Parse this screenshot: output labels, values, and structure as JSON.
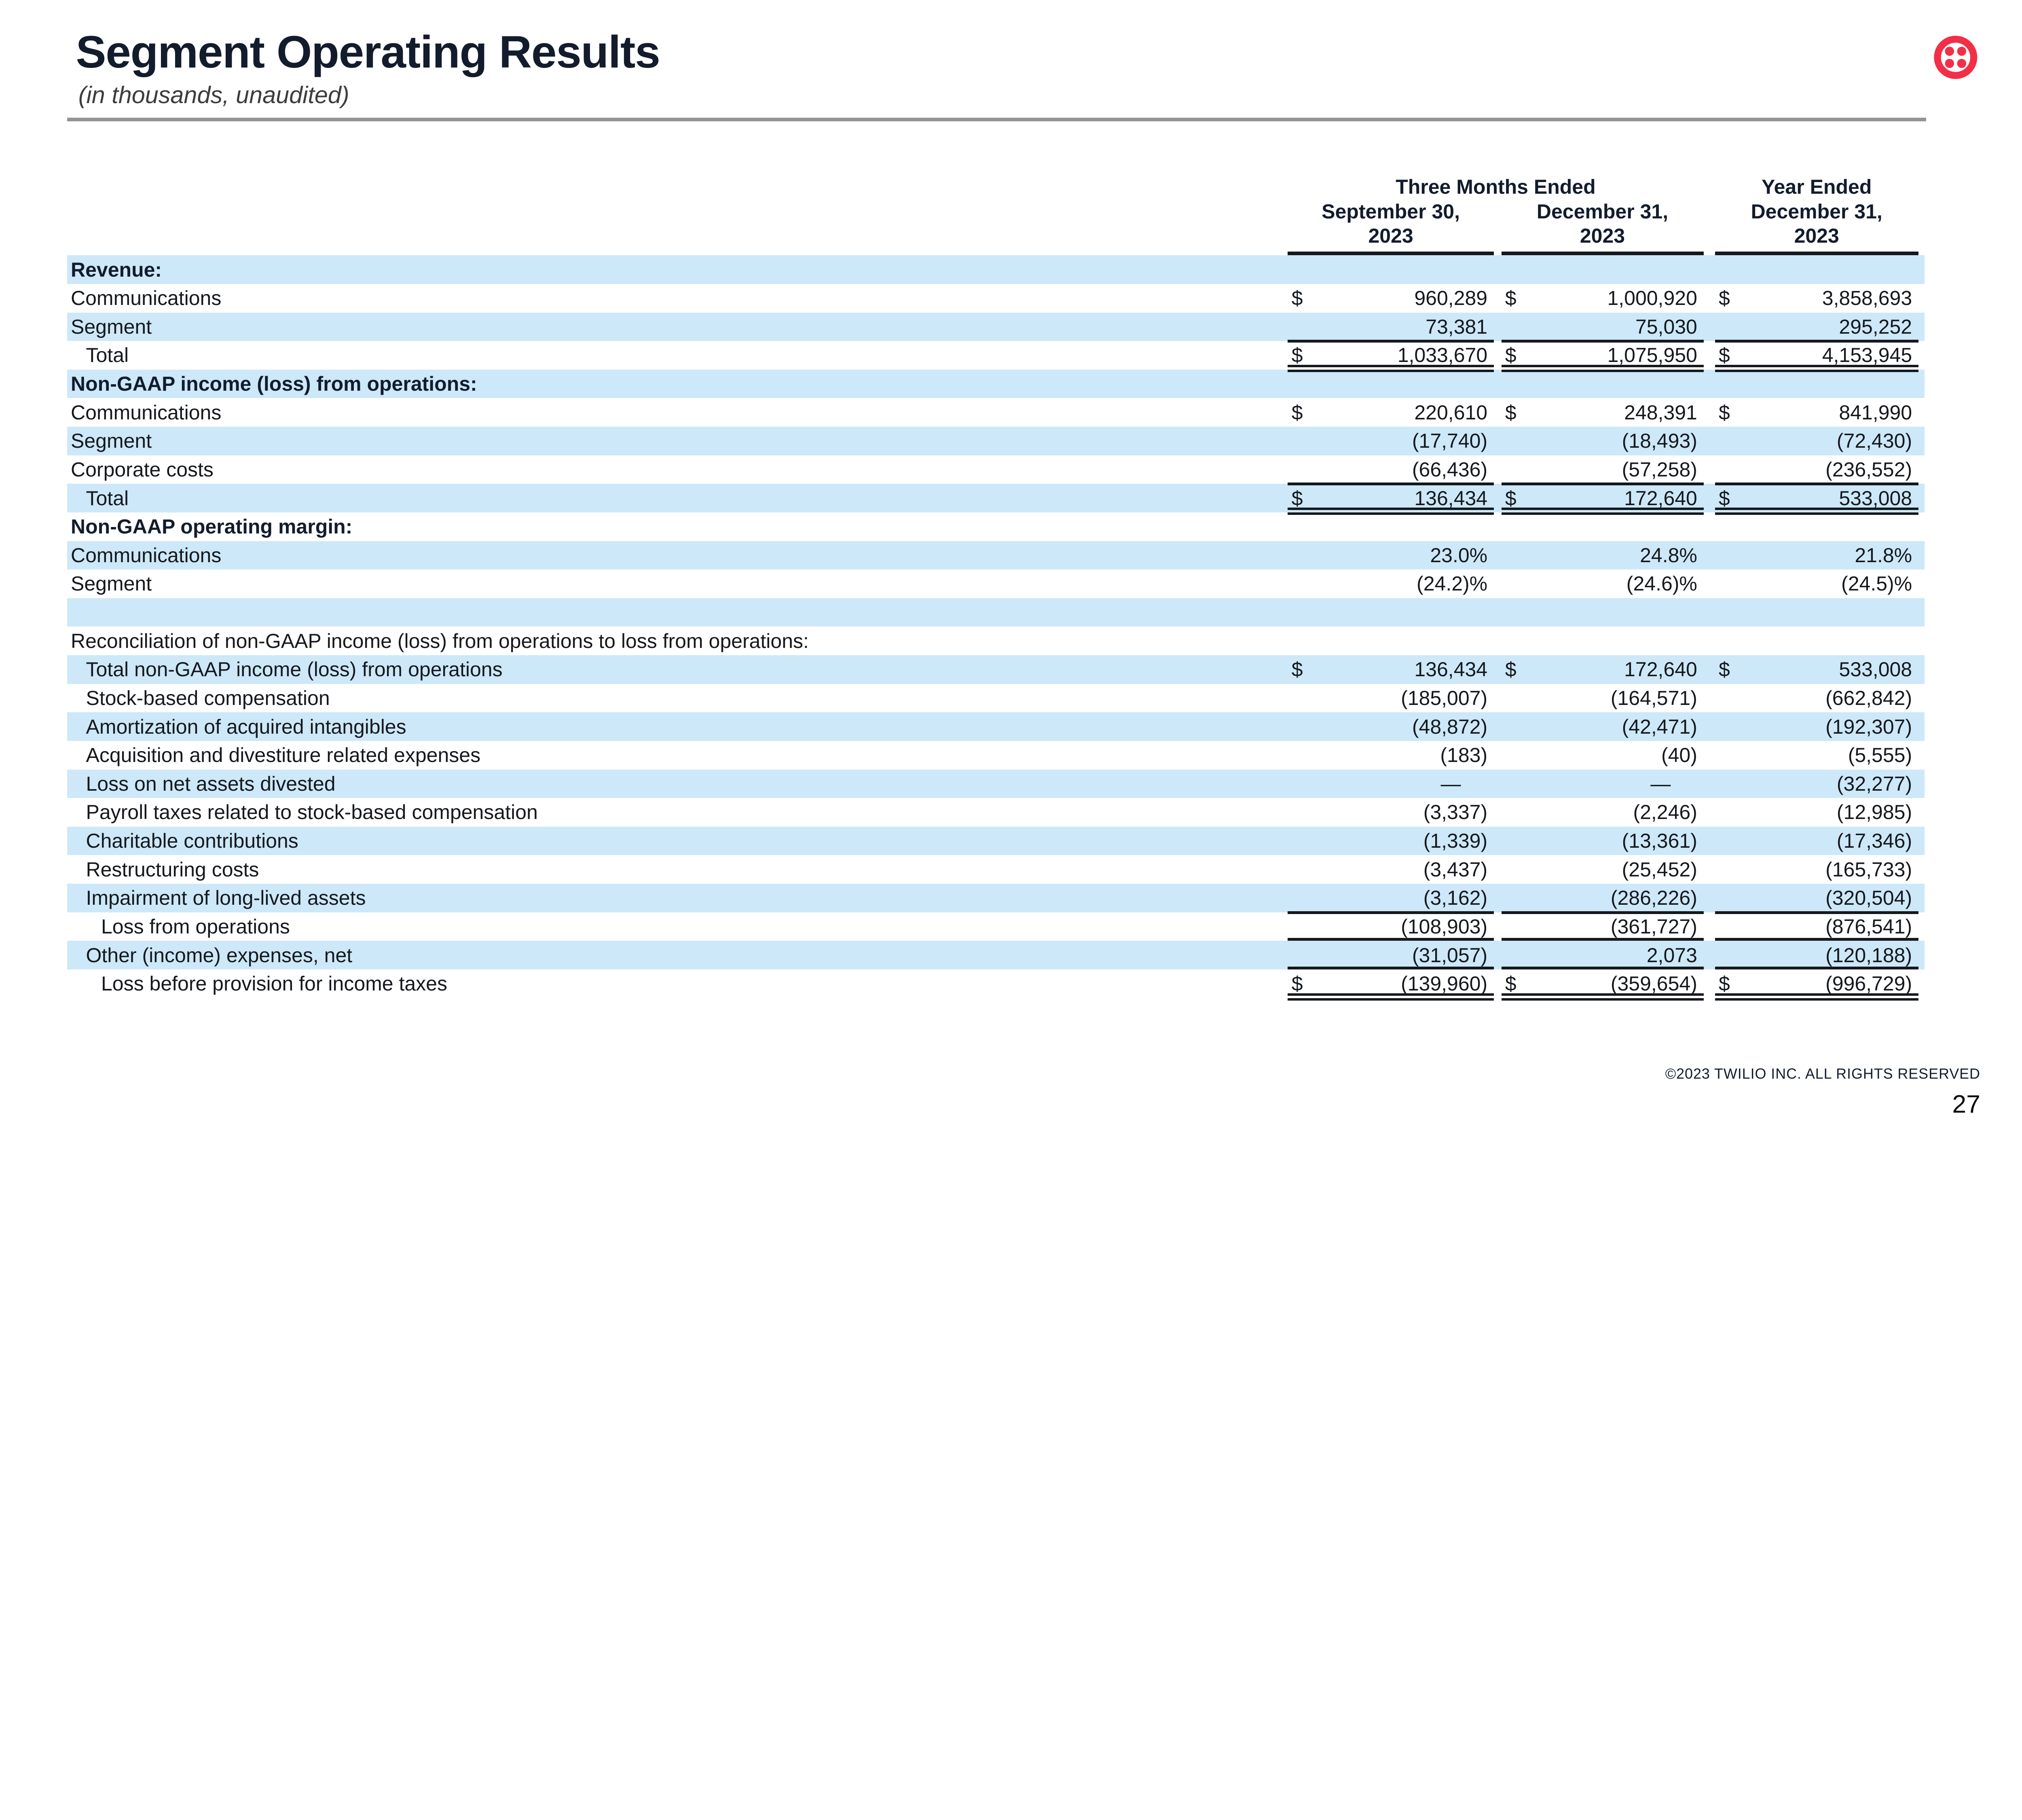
{
  "slide": {
    "title": "Segment Operating Results",
    "subtitle": "(in thousands, unaudited)",
    "footer": "©2023 TWILIO INC. ALL RIGHTS RESERVED",
    "page_number": "27"
  },
  "logo": {
    "name": "twilio-logo",
    "color": "#F22F46"
  },
  "colors": {
    "accent_red": "#F22F46",
    "ink_navy": "#121C2D",
    "band_blue": "#CDE8F8",
    "rule_black": "#15181D",
    "divider_gray": "#949494"
  },
  "table": {
    "col_groups": [
      {
        "label": "Three Months Ended"
      },
      {
        "label": "Year Ended"
      }
    ],
    "col_headers": [
      {
        "line1": "September 30,",
        "line2": "2023"
      },
      {
        "line1": "December 31,",
        "line2": "2023"
      },
      {
        "line1": "December 31,",
        "line2": "2023"
      }
    ],
    "currency_symbol": "$",
    "rows": [
      {
        "label": "Revenue:",
        "bold": true,
        "indent": 0,
        "dollar": false,
        "values": null,
        "rule_top": false,
        "rule_bottom": null
      },
      {
        "label": "Communications",
        "indent": 0,
        "dollar": true,
        "values": [
          "960,289",
          "1,000,920",
          "3,858,693"
        ]
      },
      {
        "label": "Segment",
        "indent": 0,
        "dollar": false,
        "values": [
          "73,381",
          "75,030",
          "295,252"
        ]
      },
      {
        "label": "Total",
        "indent": 1,
        "dollar": true,
        "values": [
          "1,033,670",
          "1,075,950",
          "4,153,945"
        ],
        "rule_top": true,
        "rule_bottom": "double"
      },
      {
        "label": "Non-GAAP income (loss) from operations:",
        "bold": true,
        "indent": 0,
        "values": null
      },
      {
        "label": "Communications",
        "indent": 0,
        "dollar": true,
        "values": [
          "220,610",
          "248,391",
          "841,990"
        ]
      },
      {
        "label": "Segment",
        "indent": 0,
        "dollar": false,
        "values": [
          "(17,740)",
          "(18,493)",
          "(72,430)"
        ]
      },
      {
        "label": "Corporate costs",
        "indent": 0,
        "dollar": false,
        "values": [
          "(66,436)",
          "(57,258)",
          "(236,552)"
        ]
      },
      {
        "label": "Total",
        "indent": 1,
        "dollar": true,
        "values": [
          "136,434",
          "172,640",
          "533,008"
        ],
        "rule_top": true,
        "rule_bottom": "double"
      },
      {
        "label": "Non-GAAP operating margin:",
        "bold": true,
        "indent": 0,
        "values": null
      },
      {
        "label": "Communications",
        "indent": 0,
        "dollar": false,
        "values": [
          "23.0%",
          "24.8%",
          "21.8%"
        ]
      },
      {
        "label": "Segment",
        "indent": 0,
        "dollar": false,
        "values": [
          "(24.2)%",
          "(24.6)%",
          "(24.5)%"
        ]
      },
      {
        "label": "",
        "indent": 0,
        "values": null
      },
      {
        "label": "Reconciliation of non-GAAP income (loss) from operations to loss from operations:",
        "indent": 0,
        "values": null
      },
      {
        "label": "Total non-GAAP income (loss) from operations",
        "indent": 1,
        "dollar": true,
        "values": [
          "136,434",
          "172,640",
          "533,008"
        ]
      },
      {
        "label": "Stock-based compensation",
        "indent": 1,
        "dollar": false,
        "values": [
          "(185,007)",
          "(164,571)",
          "(662,842)"
        ]
      },
      {
        "label": "Amortization of acquired intangibles",
        "indent": 1,
        "dollar": false,
        "values": [
          "(48,872)",
          "(42,471)",
          "(192,307)"
        ]
      },
      {
        "label": "Acquisition and divestiture related expenses",
        "indent": 1,
        "dollar": false,
        "values": [
          "(183)",
          "(40)",
          "(5,555)"
        ]
      },
      {
        "label": "Loss on net assets divested",
        "indent": 1,
        "dollar": false,
        "values": [
          "—",
          "—",
          "(32,277)"
        ]
      },
      {
        "label": "Payroll taxes related to stock-based compensation",
        "indent": 1,
        "dollar": false,
        "values": [
          "(3,337)",
          "(2,246)",
          "(12,985)"
        ]
      },
      {
        "label": "Charitable contributions",
        "indent": 1,
        "dollar": false,
        "values": [
          "(1,339)",
          "(13,361)",
          "(17,346)"
        ]
      },
      {
        "label": "Restructuring costs",
        "indent": 1,
        "dollar": false,
        "values": [
          "(3,437)",
          "(25,452)",
          "(165,733)"
        ]
      },
      {
        "label": "Impairment of long-lived assets",
        "indent": 1,
        "dollar": false,
        "values": [
          "(3,162)",
          "(286,226)",
          "(320,504)"
        ]
      },
      {
        "label": "Loss from operations",
        "indent": 2,
        "dollar": false,
        "values": [
          "(108,903)",
          "(361,727)",
          "(876,541)"
        ],
        "rule_top": true,
        "rule_bottom": "single"
      },
      {
        "label": "Other (income) expenses, net",
        "indent": 1,
        "dollar": false,
        "values": [
          "(31,057)",
          "2,073",
          "(120,188)"
        ],
        "rule_bottom": "single"
      },
      {
        "label": "Loss before provision for income taxes",
        "indent": 2,
        "dollar": true,
        "values": [
          "(139,960)",
          "(359,654)",
          "(996,729)"
        ],
        "rule_bottom": "double"
      }
    ]
  }
}
